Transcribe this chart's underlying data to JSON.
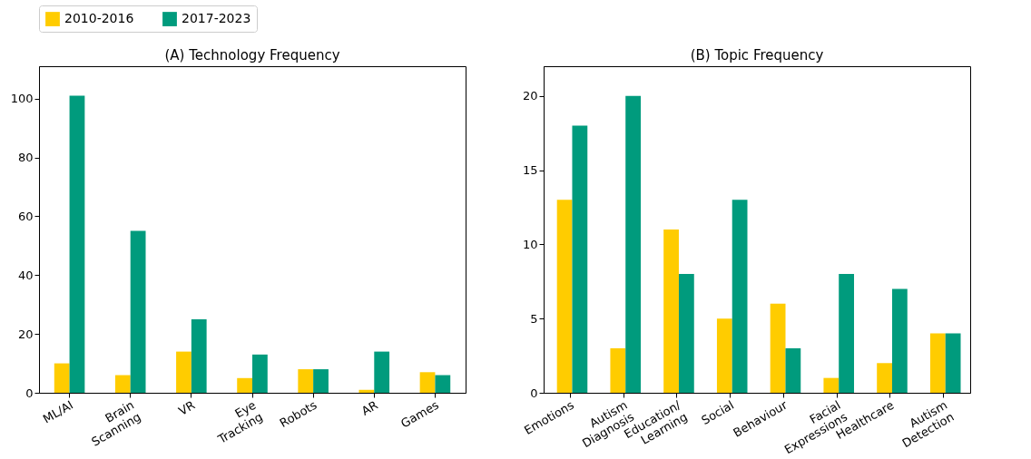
{
  "chart_data": [
    {
      "type": "bar",
      "title": "(A) Technology Frequency",
      "categories": [
        "ML/AI",
        "Brain\nScanning",
        "VR",
        "Eye\nTracking",
        "Robots",
        "AR",
        "Games"
      ],
      "series": [
        {
          "name": "2010-2016",
          "color": "#ffcc00",
          "values": [
            10,
            6,
            14,
            5,
            8,
            1,
            7
          ]
        },
        {
          "name": "2017-2023",
          "color": "#009b7d",
          "values": [
            101,
            55,
            25,
            13,
            8,
            14,
            6
          ]
        }
      ],
      "ylim": [
        0,
        111
      ],
      "yticks": [
        0,
        20,
        40,
        60,
        80,
        100
      ],
      "grid": false,
      "legend": "top"
    },
    {
      "type": "bar",
      "title": "(B) Topic Frequency",
      "categories": [
        "Emotions",
        "Autism\nDiagnosis",
        "Education/\nLearning",
        "Social",
        "Behaviour",
        "Facial\nExpressions",
        "Healthcare",
        "Autism\nDetection"
      ],
      "series": [
        {
          "name": "2010-2016",
          "color": "#ffcc00",
          "values": [
            13,
            3,
            11,
            5,
            6,
            1,
            2,
            4
          ]
        },
        {
          "name": "2017-2023",
          "color": "#009b7d",
          "values": [
            18,
            20,
            8,
            13,
            3,
            8,
            7,
            4
          ]
        }
      ],
      "ylim": [
        0,
        22
      ],
      "yticks": [
        0,
        5,
        10,
        15,
        20
      ],
      "grid": false,
      "legend": "top"
    }
  ]
}
